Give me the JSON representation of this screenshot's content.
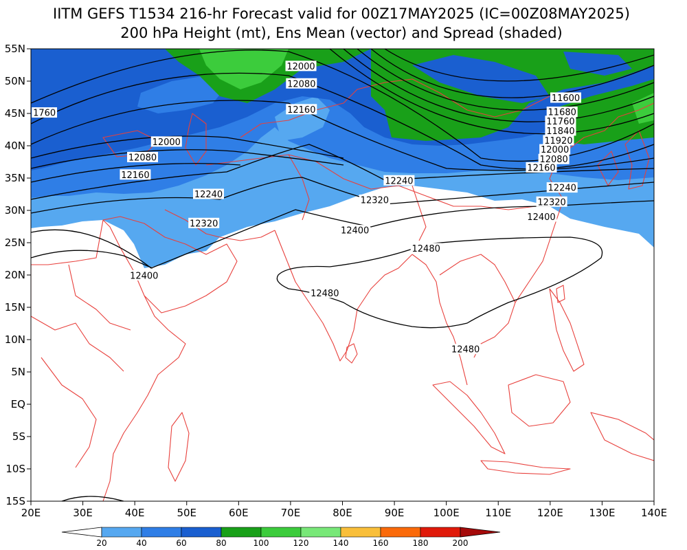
{
  "title": {
    "line1": "IITM GEFS T1534 216-hr Forecast valid for 00Z17MAY2025 (IC=00Z08MAY2025)",
    "line2": "200 hPa Height (mt), Ens Mean (vector) and Spread (shaded)"
  },
  "map": {
    "lon_range": [
      20,
      140
    ],
    "lat_range": [
      -15,
      55
    ],
    "lon_ticks": [
      "20E",
      "30E",
      "40E",
      "50E",
      "60E",
      "70E",
      "80E",
      "90E",
      "100E",
      "110E",
      "120E",
      "130E",
      "140E"
    ],
    "lat_ticks": [
      "55N",
      "50N",
      "45N",
      "40N",
      "35N",
      "30N",
      "25N",
      "20N",
      "15N",
      "10N",
      "5N",
      "EQ",
      "5S",
      "10S",
      "15S"
    ],
    "coastline_color": "#e8403c",
    "contour_color": "#000000"
  },
  "colorbar": {
    "levels": [
      "20",
      "40",
      "60",
      "80",
      "100",
      "120",
      "140",
      "160",
      "180",
      "200"
    ],
    "colors": [
      "#ffffff",
      "#56a8f0",
      "#2f7ee6",
      "#1a5fd0",
      "#19a019",
      "#3ccc3c",
      "#78e878",
      "#f9bf3a",
      "#fa6a0a",
      "#e01a0a",
      "#a50a0a"
    ]
  },
  "contour_labels": [
    {
      "text": "12000",
      "lon": 72.0,
      "lat": 52.3
    },
    {
      "text": "12080",
      "lon": 72.1,
      "lat": 49.6
    },
    {
      "text": "12160",
      "lon": 72.1,
      "lat": 45.6
    },
    {
      "text": "1760",
      "lon": 22.6,
      "lat": 45.1
    },
    {
      "text": "12000",
      "lon": 46.1,
      "lat": 40.6
    },
    {
      "text": "12080",
      "lon": 41.5,
      "lat": 38.2
    },
    {
      "text": "12160",
      "lon": 40.1,
      "lat": 35.5
    },
    {
      "text": "12240",
      "lon": 54.2,
      "lat": 32.5
    },
    {
      "text": "12320",
      "lon": 53.3,
      "lat": 28.0
    },
    {
      "text": "12400",
      "lon": 41.8,
      "lat": 19.9
    },
    {
      "text": "12240",
      "lon": 90.9,
      "lat": 34.6
    },
    {
      "text": "12320",
      "lon": 86.2,
      "lat": 31.6
    },
    {
      "text": "12400",
      "lon": 82.4,
      "lat": 26.9
    },
    {
      "text": "12480",
      "lon": 96.1,
      "lat": 24.1
    },
    {
      "text": "12480",
      "lon": 76.6,
      "lat": 17.2
    },
    {
      "text": "12480",
      "lon": 103.7,
      "lat": 8.5
    },
    {
      "text": "11600",
      "lon": 123.0,
      "lat": 47.4
    },
    {
      "text": "11680",
      "lon": 122.3,
      "lat": 45.2
    },
    {
      "text": "11760",
      "lon": 122.0,
      "lat": 43.8
    },
    {
      "text": "11840",
      "lon": 122.0,
      "lat": 42.3
    },
    {
      "text": "11920",
      "lon": 121.6,
      "lat": 40.8
    },
    {
      "text": "12000",
      "lon": 120.9,
      "lat": 39.4
    },
    {
      "text": "12080",
      "lon": 120.7,
      "lat": 37.9
    },
    {
      "text": "12160",
      "lon": 118.3,
      "lat": 36.6
    },
    {
      "text": "12240",
      "lon": 122.3,
      "lat": 33.5
    },
    {
      "text": "12320",
      "lon": 120.3,
      "lat": 31.3
    },
    {
      "text": "12400",
      "lon": 118.3,
      "lat": 29.0
    }
  ]
}
